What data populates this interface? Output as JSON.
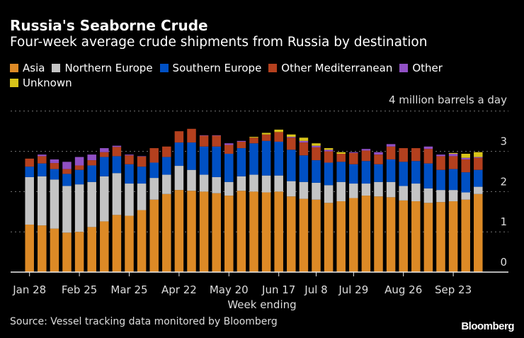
{
  "chart_data": {
    "type": "bar",
    "stacked": true,
    "title": "Russia's Seaborne Crude",
    "subtitle": "Four-week average crude shipments from Russia by destination",
    "unit_label": "4 million barrels a day",
    "xlabel": "Week ending",
    "ylabel": "",
    "ylim": [
      0,
      4
    ],
    "yticks": [
      "0",
      "1",
      "2",
      "3"
    ],
    "grid": true,
    "legend_position": "top",
    "categories": [
      "Jan 28",
      "Feb 4",
      "Feb 11",
      "Feb 18",
      "Feb 25",
      "Mar 4",
      "Mar 11",
      "Mar 18",
      "Mar 25",
      "Apr 1",
      "Apr 8",
      "Apr 15",
      "Apr 22",
      "Apr 29",
      "May 6",
      "May 13",
      "May 20",
      "May 27",
      "Jun 3",
      "Jun 10",
      "Jun 17",
      "Jun 24",
      "Jul 1",
      "Jul 8",
      "Jul 15",
      "Jul 22",
      "Jul 29",
      "Aug 5",
      "Aug 12",
      "Aug 19",
      "Aug 26",
      "Sep 2",
      "Sep 9",
      "Sep 16",
      "Sep 23",
      "Sep 30",
      "Oct 7"
    ],
    "xtick_labels": [
      "Jan 28",
      "Feb 25",
      "Mar 25",
      "Apr 22",
      "May 20",
      "Jun 17",
      "Jul 8",
      "Jul 29",
      "Aug 26",
      "Sep 23"
    ],
    "series": [
      {
        "name": "Asia",
        "color": "#dd8a26",
        "values": [
          1.18,
          1.16,
          1.08,
          0.98,
          1.0,
          1.12,
          1.26,
          1.42,
          1.4,
          1.54,
          1.8,
          1.94,
          2.04,
          2.02,
          2.0,
          1.96,
          1.9,
          2.02,
          2.0,
          1.98,
          2.0,
          1.88,
          1.82,
          1.8,
          1.72,
          1.76,
          1.84,
          1.9,
          1.88,
          1.86,
          1.78,
          1.76,
          1.72,
          1.74,
          1.76,
          1.8,
          1.94
        ]
      },
      {
        "name": "Northern Europe",
        "color": "#c4c4c4",
        "values": [
          1.18,
          1.22,
          1.22,
          1.16,
          1.18,
          1.12,
          1.12,
          1.04,
          0.8,
          0.66,
          0.54,
          0.48,
          0.6,
          0.52,
          0.42,
          0.4,
          0.34,
          0.36,
          0.42,
          0.42,
          0.4,
          0.38,
          0.42,
          0.42,
          0.44,
          0.48,
          0.36,
          0.3,
          0.36,
          0.38,
          0.36,
          0.44,
          0.36,
          0.3,
          0.28,
          0.18,
          0.18
        ]
      },
      {
        "name": "Southern Europe",
        "color": "#0050c4",
        "values": [
          0.26,
          0.32,
          0.26,
          0.3,
          0.36,
          0.41,
          0.48,
          0.42,
          0.48,
          0.42,
          0.38,
          0.44,
          0.58,
          0.68,
          0.7,
          0.76,
          0.7,
          0.7,
          0.78,
          0.86,
          0.84,
          0.78,
          0.66,
          0.56,
          0.56,
          0.5,
          0.48,
          0.56,
          0.44,
          0.56,
          0.6,
          0.56,
          0.62,
          0.5,
          0.52,
          0.5,
          0.42
        ]
      },
      {
        "name": "Other Mediterranean",
        "color": "#b4401e",
        "values": [
          0.2,
          0.18,
          0.15,
          0.12,
          0.11,
          0.13,
          0.12,
          0.23,
          0.22,
          0.25,
          0.36,
          0.26,
          0.28,
          0.34,
          0.27,
          0.27,
          0.22,
          0.16,
          0.14,
          0.16,
          0.24,
          0.3,
          0.32,
          0.32,
          0.28,
          0.2,
          0.28,
          0.26,
          0.24,
          0.32,
          0.34,
          0.32,
          0.36,
          0.34,
          0.32,
          0.32,
          0.3
        ]
      },
      {
        "name": "Other",
        "color": "#9050c4",
        "values": [
          0,
          0.04,
          0.09,
          0.18,
          0.21,
          0.14,
          0.1,
          0.03,
          0.02,
          0.01,
          0,
          0,
          0,
          0,
          0.01,
          0.01,
          0.04,
          0.02,
          0,
          0,
          0,
          0.02,
          0.04,
          0.04,
          0.04,
          0,
          0.02,
          0.04,
          0.06,
          0.06,
          0,
          0,
          0.06,
          0.04,
          0.06,
          0.04,
          0.02
        ]
      },
      {
        "name": "Unknown",
        "color": "#d8c41a",
        "values": [
          0,
          0,
          0,
          0,
          0,
          0,
          0,
          0,
          0,
          0,
          0,
          0,
          0,
          0,
          0,
          0,
          0,
          0,
          0.02,
          0.04,
          0.06,
          0.06,
          0.08,
          0.06,
          0.04,
          0.04,
          0,
          0,
          0,
          0,
          0,
          0,
          0,
          0,
          0.02,
          0.1,
          0.12
        ]
      }
    ]
  },
  "source": "Source: Vessel tracking data monitored by Bloomberg",
  "logo": "Bloomberg"
}
